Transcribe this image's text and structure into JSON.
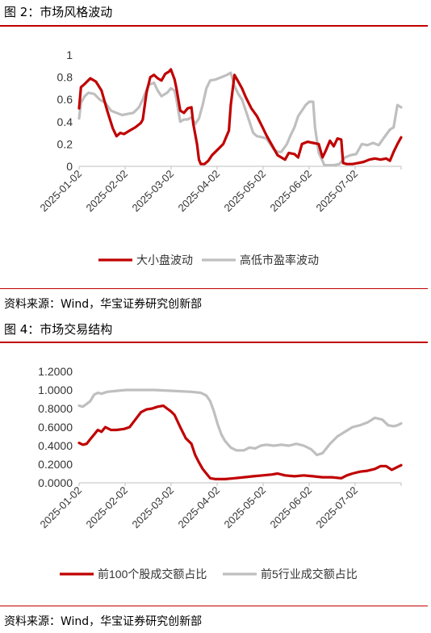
{
  "figures": [
    {
      "title": "图 2：市场风格波动",
      "source": "资料来源：Wind，华宝证券研究创新部"
    },
    {
      "title": "图 4：市场交易结构",
      "source": "资料来源：Wind，华宝证券研究创新部"
    }
  ],
  "colors": {
    "red": "#c00000",
    "gray": "#bfbfbf",
    "rule": "#c00000"
  },
  "chart_data": [
    {
      "type": "line",
      "x_labels": [
        "2025-01-02",
        "2025-02-02",
        "2025-03-02",
        "2025-04-02",
        "2025-05-02",
        "2025-06-02",
        "2025-07-02"
      ],
      "y_ticks": [
        "1",
        "0.8",
        "0.6",
        "0.4",
        "0.2",
        "0"
      ],
      "ylim": [
        0,
        1
      ],
      "grid": false,
      "legend_position": "bottom",
      "series": [
        {
          "name": "大小盘波动",
          "color": "#c00000",
          "values": [
            [
              0,
              0.52
            ],
            [
              1,
              0.71
            ],
            [
              3,
              0.74
            ],
            [
              6,
              0.79
            ],
            [
              9,
              0.76
            ],
            [
              12,
              0.68
            ],
            [
              15,
              0.5
            ],
            [
              18,
              0.34
            ],
            [
              20,
              0.27
            ],
            [
              22,
              0.3
            ],
            [
              24,
              0.29
            ],
            [
              27,
              0.32
            ],
            [
              30,
              0.35
            ],
            [
              33,
              0.39
            ],
            [
              34,
              0.42
            ],
            [
              36,
              0.66
            ],
            [
              38,
              0.8
            ],
            [
              40,
              0.82
            ],
            [
              42,
              0.79
            ],
            [
              44,
              0.77
            ],
            [
              46,
              0.83
            ],
            [
              48,
              0.85
            ],
            [
              49,
              0.87
            ],
            [
              51,
              0.78
            ],
            [
              52,
              0.7
            ],
            [
              54,
              0.5
            ],
            [
              56,
              0.48
            ],
            [
              58,
              0.52
            ],
            [
              60,
              0.53
            ],
            [
              61,
              0.38
            ],
            [
              63,
              0.2
            ],
            [
              64,
              0.06
            ],
            [
              65,
              0.02
            ],
            [
              67,
              0.02
            ],
            [
              69,
              0.05
            ],
            [
              71,
              0.1
            ],
            [
              74,
              0.15
            ],
            [
              77,
              0.2
            ],
            [
              80,
              0.32
            ],
            [
              81,
              0.55
            ],
            [
              83,
              0.82
            ],
            [
              85,
              0.76
            ],
            [
              87,
              0.7
            ],
            [
              89,
              0.62
            ],
            [
              92,
              0.52
            ],
            [
              95,
              0.45
            ],
            [
              98,
              0.35
            ],
            [
              100,
              0.28
            ],
            [
              102,
              0.22
            ],
            [
              104,
              0.16
            ],
            [
              106,
              0.1
            ],
            [
              108,
              0.08
            ],
            [
              110,
              0.06
            ],
            [
              112,
              0.12
            ],
            [
              115,
              0.11
            ],
            [
              117,
              0.08
            ],
            [
              119,
              0.2
            ],
            [
              122,
              0.22
            ],
            [
              125,
              0.21
            ],
            [
              128,
              0.2
            ],
            [
              130,
              0.08
            ],
            [
              132,
              0.15
            ],
            [
              134,
              0.23
            ],
            [
              136,
              0.18
            ],
            [
              138,
              0.25
            ],
            [
              140,
              0.24
            ],
            [
              141,
              0.03
            ],
            [
              143,
              0.02
            ],
            [
              146,
              0.02
            ],
            [
              149,
              0.03
            ],
            [
              152,
              0.04
            ],
            [
              155,
              0.06
            ],
            [
              158,
              0.07
            ],
            [
              161,
              0.06
            ],
            [
              164,
              0.07
            ],
            [
              166,
              0.05
            ],
            [
              168,
              0.13
            ],
            [
              170,
              0.2
            ],
            [
              172,
              0.26
            ]
          ]
        },
        {
          "name": "高低市盈率波动",
          "color": "#bfbfbf",
          "values": [
            [
              0,
              0.43
            ],
            [
              1,
              0.57
            ],
            [
              3,
              0.63
            ],
            [
              5,
              0.66
            ],
            [
              8,
              0.65
            ],
            [
              11,
              0.6
            ],
            [
              14,
              0.57
            ],
            [
              17,
              0.5
            ],
            [
              20,
              0.48
            ],
            [
              23,
              0.46
            ],
            [
              26,
              0.47
            ],
            [
              29,
              0.48
            ],
            [
              32,
              0.53
            ],
            [
              34,
              0.6
            ],
            [
              37,
              0.73
            ],
            [
              40,
              0.75
            ],
            [
              42,
              0.68
            ],
            [
              44,
              0.63
            ],
            [
              47,
              0.66
            ],
            [
              49,
              0.7
            ],
            [
              51,
              0.68
            ],
            [
              52,
              0.6
            ],
            [
              54,
              0.4
            ],
            [
              56,
              0.42
            ],
            [
              58,
              0.42
            ],
            [
              60,
              0.44
            ],
            [
              62,
              0.38
            ],
            [
              64,
              0.43
            ],
            [
              66,
              0.55
            ],
            [
              68,
              0.7
            ],
            [
              70,
              0.77
            ],
            [
              73,
              0.78
            ],
            [
              76,
              0.8
            ],
            [
              79,
              0.82
            ],
            [
              81,
              0.84
            ],
            [
              83,
              0.72
            ],
            [
              85,
              0.65
            ],
            [
              87,
              0.6
            ],
            [
              89,
              0.5
            ],
            [
              91,
              0.4
            ],
            [
              93,
              0.3
            ],
            [
              95,
              0.27
            ],
            [
              98,
              0.26
            ],
            [
              100,
              0.25
            ],
            [
              102,
              0.2
            ],
            [
              104,
              0.15
            ],
            [
              106,
              0.13
            ],
            [
              108,
              0.13
            ],
            [
              111,
              0.2
            ],
            [
              113,
              0.28
            ],
            [
              115,
              0.35
            ],
            [
              117,
              0.45
            ],
            [
              119,
              0.5
            ],
            [
              121,
              0.55
            ],
            [
              123,
              0.58
            ],
            [
              125,
              0.58
            ],
            [
              126,
              0.35
            ],
            [
              128,
              0.12
            ],
            [
              130,
              0.05
            ],
            [
              131,
              0.01
            ],
            [
              133,
              0.01
            ],
            [
              136,
              0.01
            ],
            [
              139,
              0.02
            ],
            [
              142,
              0.08
            ],
            [
              145,
              0.1
            ],
            [
              148,
              0.11
            ],
            [
              151,
              0.2
            ],
            [
              154,
              0.19
            ],
            [
              157,
              0.21
            ],
            [
              160,
              0.19
            ],
            [
              163,
              0.26
            ],
            [
              166,
              0.33
            ],
            [
              168,
              0.35
            ],
            [
              170,
              0.55
            ],
            [
              172,
              0.53
            ]
          ]
        }
      ]
    },
    {
      "type": "line",
      "x_labels": [
        "2025-01-02",
        "2025-02-02",
        "2025-03-02",
        "2025-04-02",
        "2025-05-02",
        "2025-06-02",
        "2025-07-02"
      ],
      "y_ticks": [
        "1.2000",
        "1.0000",
        "0.8000",
        "0.6000",
        "0.4000",
        "0.2000",
        "0.0000"
      ],
      "ylim": [
        0,
        1.2
      ],
      "grid": false,
      "legend_position": "bottom",
      "series": [
        {
          "name": "前100个股成交额占比",
          "color": "#c00000",
          "values": [
            [
              0,
              0.43
            ],
            [
              2,
              0.41
            ],
            [
              4,
              0.42
            ],
            [
              6,
              0.47
            ],
            [
              8,
              0.52
            ],
            [
              10,
              0.57
            ],
            [
              12,
              0.55
            ],
            [
              14,
              0.6
            ],
            [
              17,
              0.57
            ],
            [
              20,
              0.57
            ],
            [
              24,
              0.58
            ],
            [
              27,
              0.6
            ],
            [
              30,
              0.68
            ],
            [
              33,
              0.76
            ],
            [
              36,
              0.79
            ],
            [
              39,
              0.8
            ],
            [
              42,
              0.82
            ],
            [
              45,
              0.83
            ],
            [
              47,
              0.8
            ],
            [
              49,
              0.77
            ],
            [
              51,
              0.73
            ],
            [
              54,
              0.6
            ],
            [
              57,
              0.48
            ],
            [
              60,
              0.42
            ],
            [
              62,
              0.3
            ],
            [
              64,
              0.22
            ],
            [
              66,
              0.15
            ],
            [
              68,
              0.1
            ],
            [
              70,
              0.05
            ],
            [
              73,
              0.04
            ],
            [
              78,
              0.04
            ],
            [
              83,
              0.05
            ],
            [
              88,
              0.06
            ],
            [
              93,
              0.07
            ],
            [
              98,
              0.08
            ],
            [
              103,
              0.09
            ],
            [
              106,
              0.1
            ],
            [
              110,
              0.08
            ],
            [
              115,
              0.07
            ],
            [
              120,
              0.08
            ],
            [
              125,
              0.07
            ],
            [
              130,
              0.06
            ],
            [
              135,
              0.06
            ],
            [
              140,
              0.05
            ],
            [
              143,
              0.08
            ],
            [
              146,
              0.1
            ],
            [
              150,
              0.12
            ],
            [
              154,
              0.13
            ],
            [
              158,
              0.15
            ],
            [
              161,
              0.18
            ],
            [
              164,
              0.18
            ],
            [
              167,
              0.14
            ],
            [
              170,
              0.17
            ],
            [
              172,
              0.19
            ]
          ]
        },
        {
          "name": "前5行业成交额占比",
          "color": "#bfbfbf",
          "values": [
            [
              0,
              0.83
            ],
            [
              2,
              0.82
            ],
            [
              4,
              0.85
            ],
            [
              6,
              0.88
            ],
            [
              8,
              0.95
            ],
            [
              10,
              0.97
            ],
            [
              12,
              0.96
            ],
            [
              15,
              0.98
            ],
            [
              20,
              0.99
            ],
            [
              25,
              1.0
            ],
            [
              30,
              1.0
            ],
            [
              40,
              1.0
            ],
            [
              50,
              0.99
            ],
            [
              60,
              0.98
            ],
            [
              65,
              0.97
            ],
            [
              68,
              0.94
            ],
            [
              70,
              0.88
            ],
            [
              72,
              0.77
            ],
            [
              74,
              0.63
            ],
            [
              76,
              0.52
            ],
            [
              78,
              0.45
            ],
            [
              81,
              0.38
            ],
            [
              84,
              0.35
            ],
            [
              88,
              0.35
            ],
            [
              91,
              0.38
            ],
            [
              94,
              0.37
            ],
            [
              97,
              0.4
            ],
            [
              100,
              0.41
            ],
            [
              104,
              0.4
            ],
            [
              108,
              0.41
            ],
            [
              112,
              0.4
            ],
            [
              116,
              0.42
            ],
            [
              120,
              0.4
            ],
            [
              124,
              0.36
            ],
            [
              127,
              0.3
            ],
            [
              130,
              0.32
            ],
            [
              134,
              0.42
            ],
            [
              138,
              0.5
            ],
            [
              142,
              0.55
            ],
            [
              146,
              0.6
            ],
            [
              150,
              0.62
            ],
            [
              154,
              0.65
            ],
            [
              158,
              0.7
            ],
            [
              162,
              0.68
            ],
            [
              165,
              0.62
            ],
            [
              168,
              0.61
            ],
            [
              170,
              0.62
            ],
            [
              172,
              0.64
            ]
          ]
        }
      ]
    }
  ]
}
